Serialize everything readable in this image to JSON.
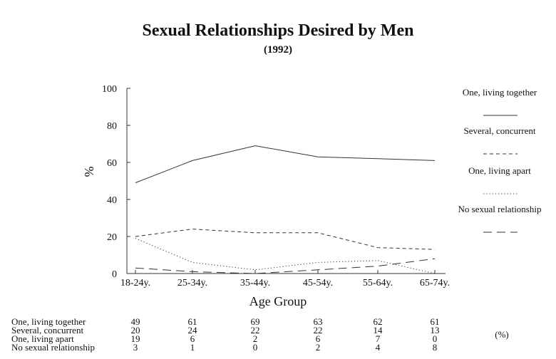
{
  "chart_data": {
    "type": "line",
    "title": "Sexual Relationships Desired by Men",
    "subtitle": "(1992)",
    "xlabel": "Age Group",
    "ylabel": "%",
    "ylim": [
      0,
      100
    ],
    "yticks": [
      0,
      20,
      40,
      60,
      80,
      100
    ],
    "categories": [
      "18-24y.",
      "25-34y.",
      "35-44y.",
      "45-54y.",
      "55-64y.",
      "65-74y."
    ],
    "series": [
      {
        "name": "One, living together",
        "values": [
          49,
          61,
          69,
          63,
          62,
          61
        ],
        "style": "solid"
      },
      {
        "name": "Several, concurrent",
        "values": [
          20,
          24,
          22,
          22,
          14,
          13
        ],
        "style": "dashed"
      },
      {
        "name": "One, living apart",
        "values": [
          19,
          6,
          2,
          6,
          7,
          0
        ],
        "style": "dotted"
      },
      {
        "name": "No sexual relationship",
        "values": [
          3,
          1,
          0,
          2,
          4,
          8
        ],
        "style": "longdash"
      }
    ],
    "legend_position": "right",
    "grid": false,
    "table_unit": "(%)",
    "line_color": "#333333"
  }
}
